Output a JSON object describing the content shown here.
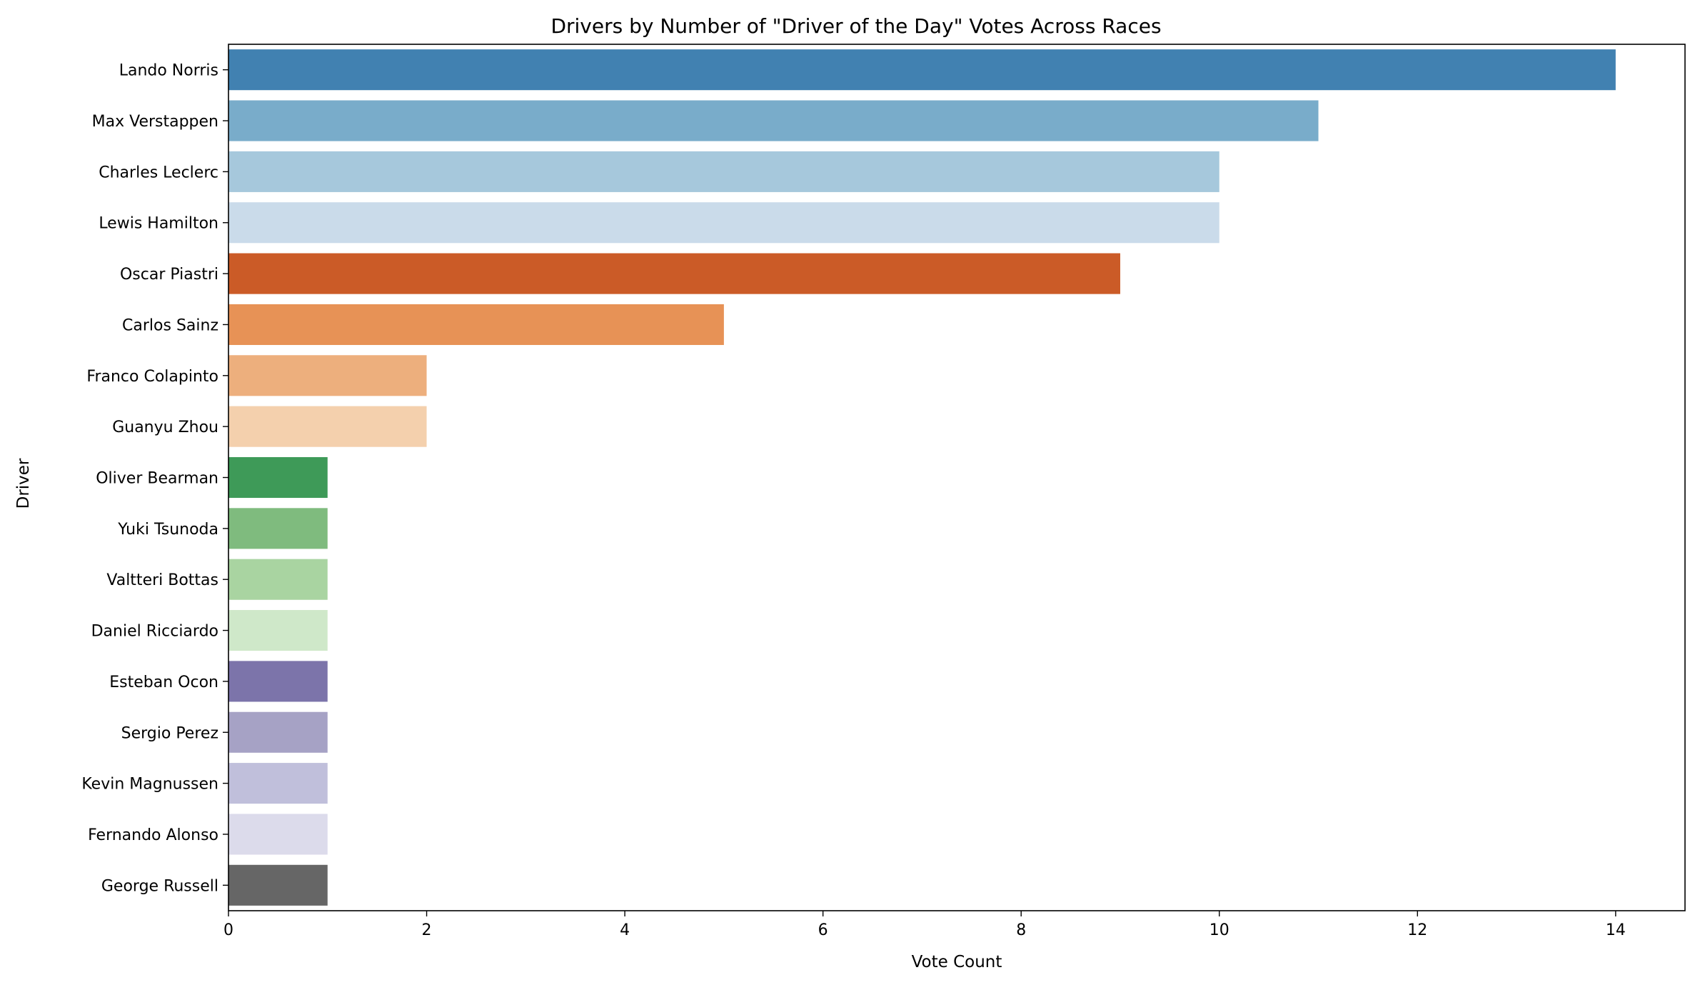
{
  "chart_data": {
    "type": "bar",
    "orientation": "horizontal",
    "title": "Drivers by Number of \"Driver of the Day\" Votes Across Races",
    "xlabel": "Vote Count",
    "ylabel": "Driver",
    "xlim": [
      0,
      14.7
    ],
    "xticks": [
      0,
      2,
      4,
      6,
      8,
      10,
      12,
      14
    ],
    "grid": false,
    "categories": [
      "Lando Norris",
      "Max Verstappen",
      "Charles Leclerc",
      "Lewis Hamilton",
      "Oscar Piastri",
      "Carlos Sainz",
      "Franco Colapinto",
      "Guanyu Zhou",
      "Oliver Bearman",
      "Yuki Tsunoda",
      "Valtteri Bottas",
      "Daniel Ricciardo",
      "Esteban Ocon",
      "Sergio Perez",
      "Kevin Magnussen",
      "Fernando Alonso",
      "George Russell"
    ],
    "values": [
      14,
      11,
      10,
      10,
      9,
      5,
      2,
      2,
      1,
      1,
      1,
      1,
      1,
      1,
      1,
      1,
      1
    ],
    "colors": [
      "#4181b1",
      "#79acca",
      "#a6c8dc",
      "#cadbea",
      "#cb5b27",
      "#e79256",
      "#edaf7d",
      "#f4d0ad",
      "#3e9a58",
      "#7fbb7e",
      "#a9d4a1",
      "#cfe8c9",
      "#7c74aa",
      "#a6a2c5",
      "#c0bfdb",
      "#dcdbeb",
      "#666666"
    ]
  }
}
